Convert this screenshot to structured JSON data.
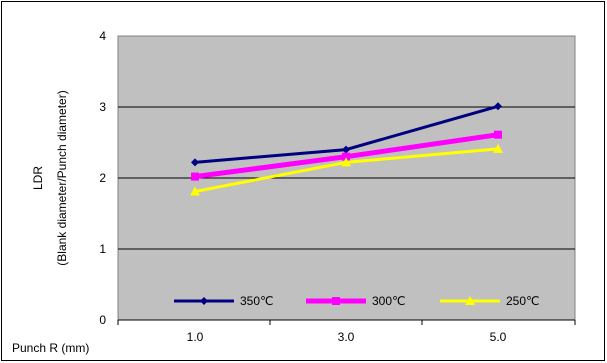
{
  "chart_data": {
    "type": "line",
    "title": "",
    "xlabel": "Punch R (mm)",
    "ylabel": "LDR",
    "ylabel_sub": "(Blank diameter/Punch diameter)",
    "categories": [
      "1.0",
      "3.0",
      "5.0"
    ],
    "ylim": [
      0,
      4
    ],
    "yticks": [
      "0",
      "1",
      "2",
      "3",
      "4"
    ],
    "grid": true,
    "plot_background": "#c0c0c0",
    "legend_position": "bottom inside plot",
    "series": [
      {
        "name": "350℃",
        "values": [
          2.22,
          2.4,
          3.01
        ],
        "color": "#000080",
        "marker": "diamond"
      },
      {
        "name": "300℃",
        "values": [
          2.02,
          2.3,
          2.61
        ],
        "color": "#ff00ff",
        "marker": "square"
      },
      {
        "name": "250℃",
        "values": [
          1.81,
          2.22,
          2.41
        ],
        "color": "#ffff00",
        "marker": "triangle"
      }
    ]
  }
}
